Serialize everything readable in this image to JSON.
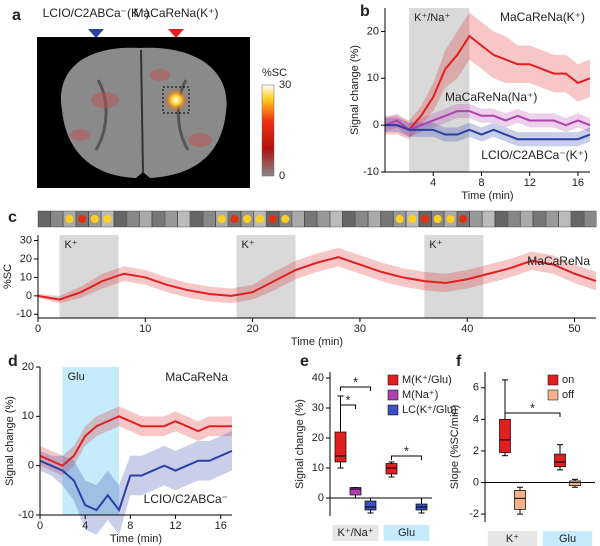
{
  "chart_data": [
    {
      "type": "image",
      "panel": "a",
      "labels": [
        {
          "text": "LCIO/C2ABCa⁻(K⁺)",
          "color": "#2b3fa8"
        },
        {
          "text": "MaCaReNa(K⁺)",
          "color": "#e02020"
        }
      ],
      "colorbar": {
        "label": "%SC",
        "lim": [
          0,
          30
        ],
        "ticks": [
          0,
          30
        ]
      }
    },
    {
      "type": "timeseries",
      "panel": "b",
      "xlabel": "Time (min)",
      "ylabel": "Signal change (%)",
      "xlim": [
        0,
        17
      ],
      "xticks": [
        4,
        8,
        12,
        16
      ],
      "ylim": [
        -10,
        25
      ],
      "yticks": [
        -10,
        0,
        10,
        20
      ],
      "shaded": [
        {
          "label": "K⁺/Na⁺",
          "start": 2,
          "end": 7
        }
      ],
      "shade_color": "#d9d9d9",
      "x": [
        0,
        1,
        2,
        3,
        4,
        5,
        6,
        7,
        8,
        9,
        10,
        11,
        12,
        13,
        14,
        15,
        16,
        17
      ],
      "series": [
        {
          "name": "MaCaReNa(K⁺)",
          "color": "#e02020",
          "values": [
            0,
            0,
            -1,
            2,
            6,
            12,
            15,
            19,
            17,
            15,
            14,
            13,
            13,
            12,
            11,
            11,
            9,
            10
          ],
          "err": [
            2,
            2,
            2,
            2,
            3,
            4,
            5,
            5,
            5,
            5,
            5,
            4,
            4,
            4,
            4,
            4,
            4,
            4
          ]
        },
        {
          "name": "MaCaReNa(Na⁺)",
          "color": "#b040b0",
          "values": [
            0,
            1,
            -1,
            0,
            1,
            2,
            3,
            3,
            2,
            2,
            1,
            2,
            1,
            1,
            1,
            0,
            1,
            0
          ],
          "err": [
            1.5,
            1.5,
            1.5,
            1.5,
            1.5,
            1.5,
            1.5,
            1.5,
            1.5,
            1.5,
            1.5,
            1.5,
            1.5,
            1.5,
            1.5,
            1.5,
            1.5,
            1.5
          ]
        },
        {
          "name": "LCIO/C2ABCa⁻(K⁺)",
          "color": "#2b3fa8",
          "values": [
            0,
            0,
            -1,
            -1,
            -1,
            -2,
            -2,
            -1,
            -2,
            -1,
            -2,
            -3,
            -3,
            -3,
            -3,
            -3,
            -3,
            -2
          ],
          "err": [
            1.5,
            1.5,
            1.5,
            1.5,
            1.5,
            1.5,
            1.5,
            1.5,
            1.5,
            1.5,
            1.5,
            1.5,
            1.5,
            1.5,
            1.5,
            1.5,
            1.5,
            1.5
          ]
        }
      ]
    },
    {
      "type": "timeseries",
      "panel": "c",
      "xlabel": "Time (min)",
      "ylabel": "%SC",
      "xlim": [
        0,
        52
      ],
      "xticks": [
        0,
        10,
        20,
        30,
        40,
        50
      ],
      "ylim": [
        -12,
        33
      ],
      "yticks": [
        -10,
        0,
        10,
        20,
        30
      ],
      "shaded": [
        {
          "label": "K⁺",
          "start": 2,
          "end": 7.5
        },
        {
          "label": "K⁺",
          "start": 18.5,
          "end": 24
        },
        {
          "label": "K⁺",
          "start": 36,
          "end": 41.5
        }
      ],
      "shade_color": "#d9d9d9",
      "x": [
        0,
        2,
        4,
        6,
        8,
        10,
        12,
        14,
        16,
        18,
        20,
        22,
        24,
        26,
        28,
        30,
        32,
        34,
        36,
        38,
        40,
        42,
        44,
        46,
        48,
        50,
        52
      ],
      "series": [
        {
          "name": "MaCaReNa",
          "color": "#e02020",
          "values": [
            0,
            -2,
            2,
            8,
            12,
            10,
            6,
            3,
            1,
            0,
            2,
            8,
            14,
            18,
            21,
            17,
            13,
            10,
            8,
            7,
            9,
            12,
            15,
            19,
            17,
            12,
            8
          ],
          "err": [
            1,
            2,
            3,
            4,
            4,
            4,
            4,
            4,
            4,
            4,
            4,
            5,
            5,
            5,
            5,
            5,
            5,
            5,
            5,
            5,
            5,
            5,
            5,
            5,
            5,
            5,
            5
          ]
        }
      ]
    },
    {
      "type": "timeseries",
      "panel": "d",
      "xlabel": "Time (min)",
      "ylabel": "Signal change (%)",
      "xlim": [
        0,
        17
      ],
      "xticks": [
        0,
        4,
        8,
        12,
        16
      ],
      "ylim": [
        -10,
        20
      ],
      "yticks": [
        -10,
        0,
        10,
        20
      ],
      "shaded": [
        {
          "label": "Glu",
          "start": 2,
          "end": 7
        }
      ],
      "shade_color": "#c6ebfa",
      "x": [
        0,
        1,
        2,
        3,
        4,
        5,
        6,
        7,
        8,
        9,
        10,
        11,
        12,
        13,
        14,
        15,
        16,
        17
      ],
      "series": [
        {
          "name": "MaCaReNa",
          "color": "#e02020",
          "values": [
            2,
            1,
            0,
            2,
            6,
            8,
            9,
            10,
            9,
            8,
            8,
            8,
            9,
            8,
            7,
            8,
            8,
            8
          ],
          "err": [
            2,
            2,
            2,
            2,
            2,
            2,
            2,
            2,
            2,
            2,
            2,
            2,
            2,
            2,
            2,
            2,
            2,
            2
          ]
        },
        {
          "name": "LCIO/C2ABCa⁻",
          "color": "#2b3fa8",
          "values": [
            1,
            0,
            -1,
            -3,
            -8,
            -9,
            -6,
            -9,
            -2,
            -2,
            -1,
            0,
            -1,
            0,
            1,
            1,
            2,
            3
          ],
          "err": [
            2,
            2,
            3,
            4,
            5,
            5,
            5,
            5,
            4,
            4,
            4,
            4,
            4,
            4,
            4,
            4,
            4,
            4
          ]
        }
      ]
    },
    {
      "type": "box",
      "panel": "e",
      "ylabel": "Signal change (%)",
      "ylim": [
        -6,
        42
      ],
      "yticks": [
        0,
        10,
        20,
        30,
        40
      ],
      "categories": [
        "K⁺/Na⁺",
        "Glu"
      ],
      "category_colors": [
        "#e6e6e6",
        "#c6ebfa"
      ],
      "series": [
        {
          "name": "M(K⁺/Glu)",
          "color": "#e02020",
          "min": [
            10,
            7
          ],
          "q1": [
            12,
            8
          ],
          "median": [
            14,
            10
          ],
          "q3": [
            22,
            11.5
          ],
          "max": [
            34,
            12
          ]
        },
        {
          "name": "M(Na⁺)",
          "color": "#b040b0",
          "min": [
            0,
            null
          ],
          "q1": [
            1,
            null
          ],
          "median": [
            3,
            null
          ],
          "q3": [
            3.5,
            null
          ],
          "max": [
            3.5,
            null
          ]
        },
        {
          "name": "LC(K⁺/Glu)",
          "color": "#3b4fc0",
          "min": [
            -5,
            -5
          ],
          "q1": [
            -4,
            -4
          ],
          "median": [
            -3,
            -3
          ],
          "q3": [
            -1,
            -2
          ],
          "max": [
            0,
            0
          ]
        }
      ],
      "annotations": [
        {
          "text": "*",
          "category": 0,
          "from": 0,
          "to": 1,
          "y": 31
        },
        {
          "text": "*",
          "category": 0,
          "from": 0,
          "to": 2,
          "y": 37
        },
        {
          "text": "*",
          "category": 1,
          "from": 0,
          "to": 2,
          "y": 14
        }
      ]
    },
    {
      "type": "box",
      "panel": "f",
      "ylabel": "Slope (%SC/min)",
      "ylim": [
        -2.5,
        7
      ],
      "yticks": [
        -2,
        0,
        2,
        4,
        6
      ],
      "categories": [
        "K⁺",
        "Glu"
      ],
      "category_colors": [
        "#e6e6e6",
        "#c6ebfa"
      ],
      "series": [
        {
          "name": "on",
          "color": "#e02020",
          "min": [
            1.7,
            0.8
          ],
          "q1": [
            1.9,
            1.0
          ],
          "median": [
            2.7,
            1.3
          ],
          "q3": [
            4.0,
            1.8
          ],
          "max": [
            6.5,
            2.4
          ]
        },
        {
          "name": "off",
          "color": "#f5b08c",
          "min": [
            -2,
            -0.3
          ],
          "q1": [
            -1.7,
            -0.2
          ],
          "median": [
            -1,
            0
          ],
          "q3": [
            -0.5,
            0.1
          ],
          "max": [
            -0.3,
            0.2
          ]
        }
      ],
      "annotations": [
        {
          "text": "*",
          "category": 0,
          "to_category": 1,
          "from": 0,
          "to": 0,
          "y": 4.4
        }
      ]
    }
  ]
}
